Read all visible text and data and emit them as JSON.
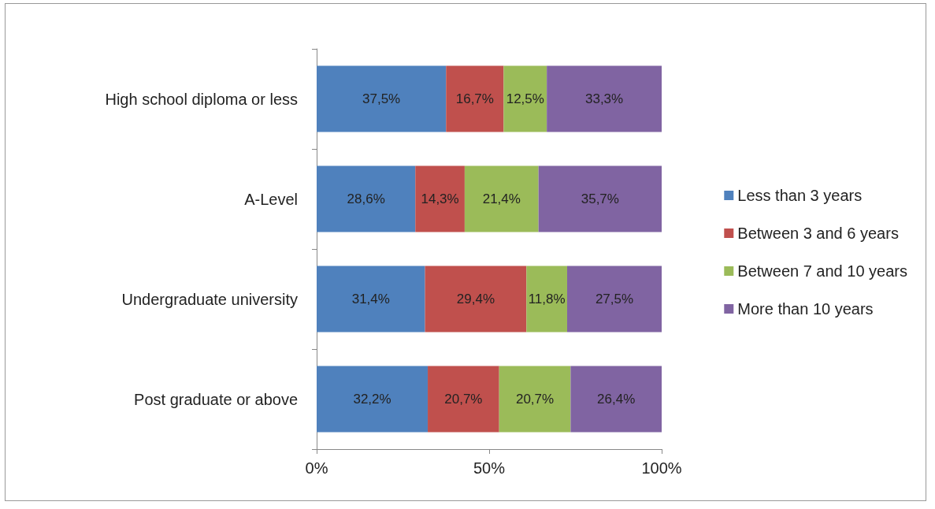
{
  "chart_data": {
    "type": "bar",
    "orientation": "horizontal",
    "stacked": true,
    "categories": [
      "High school diploma or less",
      "A-Level",
      "Undergraduate university",
      "Post graduate or above"
    ],
    "series": [
      {
        "name": "Less than 3 years",
        "color": "#4f81bd",
        "values": [
          37.5,
          28.6,
          31.4,
          32.2
        ],
        "value_labels": [
          "37,5%",
          "28,6%",
          "31,4%",
          "32,2%"
        ]
      },
      {
        "name": "Between 3 and 6 years",
        "color": "#c0504d",
        "values": [
          16.7,
          14.3,
          29.4,
          20.7
        ],
        "value_labels": [
          "16,7%",
          "14,3%",
          "29,4%",
          "20,7%"
        ]
      },
      {
        "name": "Between 7 and 10 years",
        "color": "#9bbb59",
        "values": [
          12.5,
          21.4,
          11.8,
          20.7
        ],
        "value_labels": [
          "12,5%",
          "21,4%",
          "11,8%",
          "20,7%"
        ]
      },
      {
        "name": "More than 10 years",
        "color": "#8064a2",
        "values": [
          33.3,
          35.7,
          27.5,
          26.4
        ],
        "value_labels": [
          "33,3%",
          "35,7%",
          "27,5%",
          "26,4%"
        ]
      }
    ],
    "xlim": [
      0,
      100
    ],
    "xticks": [
      {
        "value": 0,
        "label": "0%"
      },
      {
        "value": 50,
        "label": "50%"
      },
      {
        "value": 100,
        "label": "100%"
      }
    ],
    "grid": false,
    "legend": "right"
  }
}
